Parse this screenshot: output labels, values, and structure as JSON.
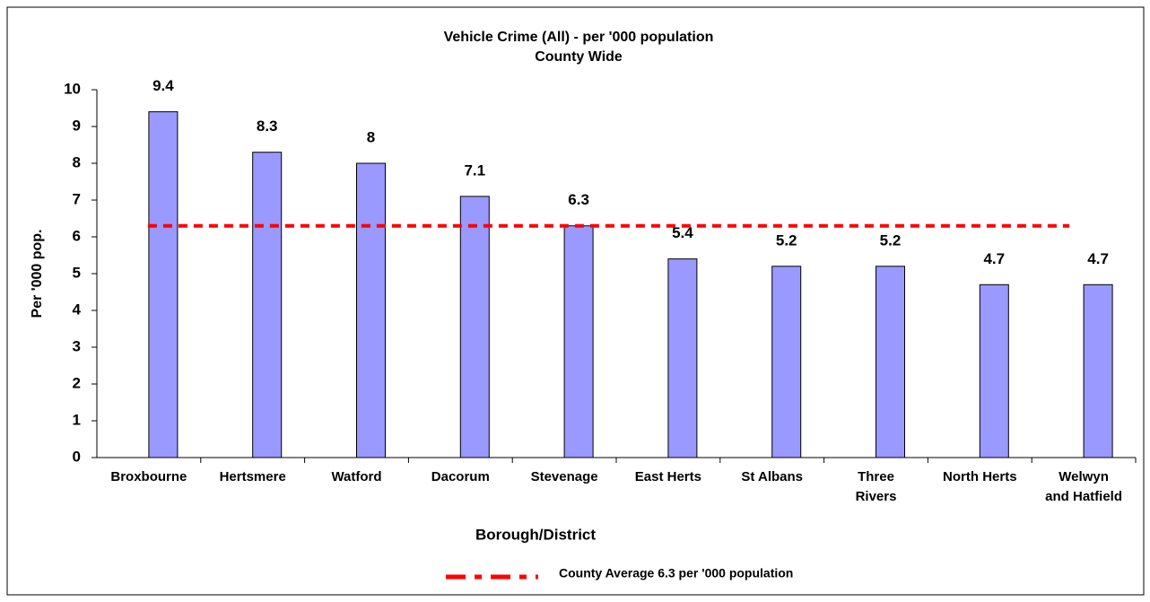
{
  "chart_data": {
    "type": "bar",
    "title": "Vehicle Crime (All) - per '000 population",
    "subtitle": "County Wide",
    "x_label": "Borough/District",
    "y_label": "Per '000 pop.",
    "categories": [
      "Broxbourne",
      "Hertsmere",
      "Watford",
      "Dacorum",
      "Stevenage",
      "East Herts",
      "St Albans",
      "Three\nRivers",
      "North Herts",
      "Welwyn\nand Hatfield"
    ],
    "values": [
      9.4,
      8.3,
      8,
      7.1,
      6.3,
      5.4,
      5.2,
      5.2,
      4.7,
      4.7
    ],
    "color": "#9999ff",
    "ylim": [
      0,
      10
    ],
    "yticks": [
      0,
      1,
      2,
      3,
      4,
      5,
      6,
      7,
      8,
      9,
      10
    ],
    "average": {
      "label": "County Average 6.3 per '000 population",
      "value": 6.3,
      "color": "#ff0000"
    },
    "grid": false
  }
}
